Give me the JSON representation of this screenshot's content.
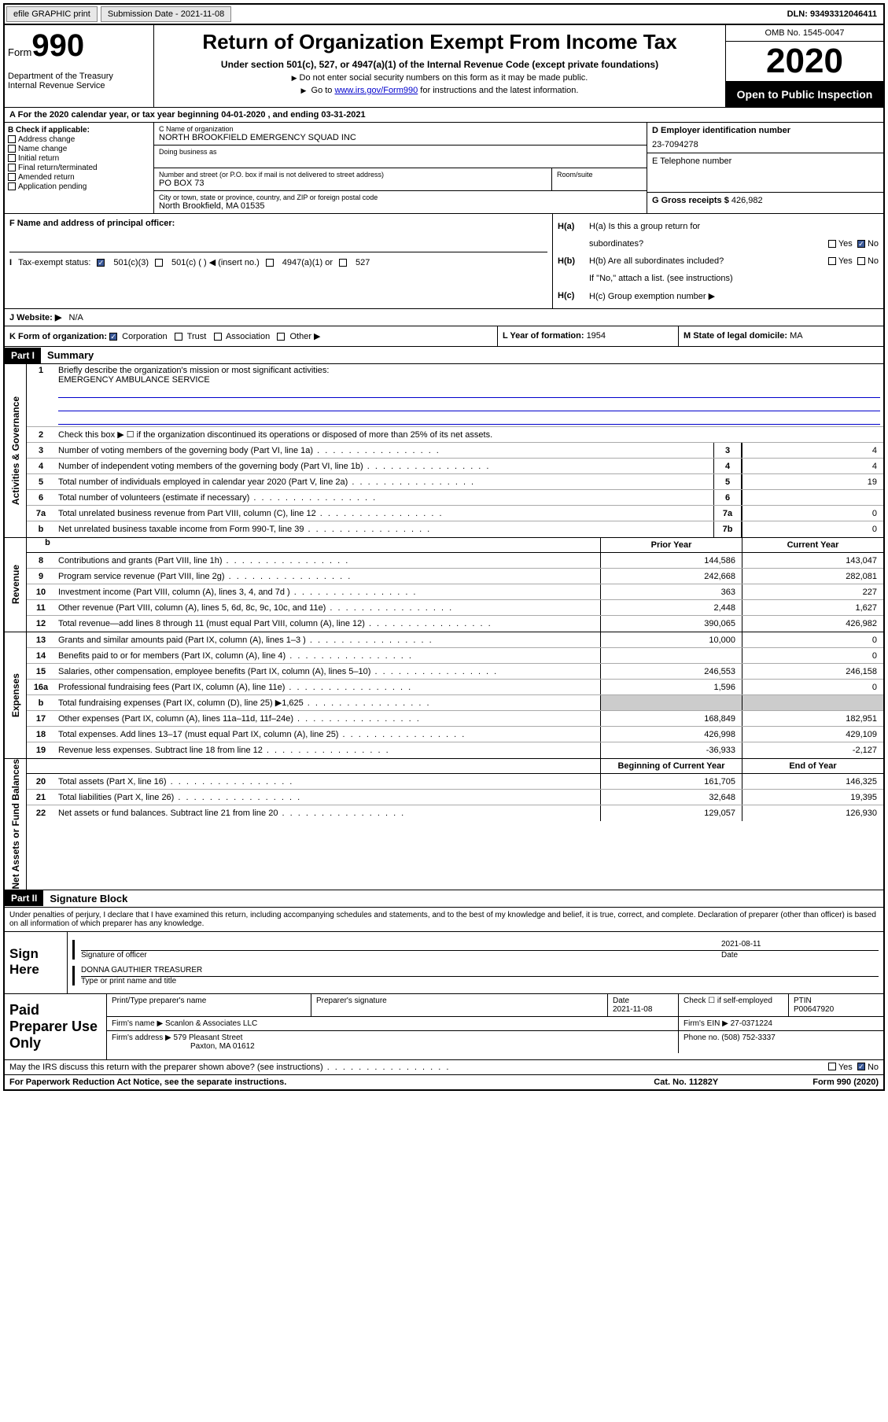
{
  "topbar": {
    "efile": "efile GRAPHIC print",
    "subdate_label": "Submission Date - ",
    "subdate": "2021-11-08",
    "dln_label": "DLN: ",
    "dln": "93493312046411"
  },
  "header": {
    "form_prefix": "Form",
    "form_no": "990",
    "dept": "Department of the Treasury\nInternal Revenue Service",
    "title": "Return of Organization Exempt From Income Tax",
    "subtitle": "Under section 501(c), 527, or 4947(a)(1) of the Internal Revenue Code (except private foundations)",
    "note1": "Do not enter social security numbers on this form as it may be made public.",
    "note2_a": "Go to ",
    "note2_link": "www.irs.gov/Form990",
    "note2_b": " for instructions and the latest information.",
    "omb": "OMB No. 1545-0047",
    "year": "2020",
    "inspect": "Open to Public Inspection"
  },
  "row_a": "For the 2020 calendar year, or tax year beginning 04-01-2020    , and ending 03-31-2021",
  "col_b": {
    "header": "B Check if applicable:",
    "items": [
      "Address change",
      "Name change",
      "Initial return",
      "Final return/terminated",
      "Amended return",
      "Application pending"
    ]
  },
  "col_c": {
    "name_lbl": "C Name of organization",
    "name": "NORTH BROOKFIELD EMERGENCY SQUAD INC",
    "dba_lbl": "Doing business as",
    "street_lbl": "Number and street (or P.O. box if mail is not delivered to street address)",
    "street": "PO BOX 73",
    "room_lbl": "Room/suite",
    "city_lbl": "City or town, state or province, country, and ZIP or foreign postal code",
    "city": "North Brookfield, MA  01535"
  },
  "col_d": {
    "ein_lbl": "D Employer identification number",
    "ein": "23-7094278",
    "tel_lbl": "E Telephone number",
    "gross_lbl": "G Gross receipts $ ",
    "gross": "426,982"
  },
  "row_f": {
    "lbl": "F  Name and address of principal officer:"
  },
  "row_h": {
    "ha": "H(a)  Is this a group return for",
    "ha2": "subordinates?",
    "hb": "H(b)  Are all subordinates included?",
    "hb_note": "If \"No,\" attach a list. (see instructions)",
    "hc": "H(c)  Group exemption number ▶",
    "yes": "Yes",
    "no": "No"
  },
  "row_i": {
    "lbl": "Tax-exempt status:",
    "o1": "501(c)(3)",
    "o2": "501(c) (  ) ◀ (insert no.)",
    "o3": "4947(a)(1) or",
    "o4": "527"
  },
  "row_j": {
    "lbl": "J    Website: ▶",
    "val": "N/A"
  },
  "row_k": {
    "k_lbl": "K Form of organization:",
    "k_opts": [
      "Corporation",
      "Trust",
      "Association",
      "Other ▶"
    ],
    "l_lbl": "L Year of formation: ",
    "l_val": "1954",
    "m_lbl": "M State of legal domicile: ",
    "m_val": "MA"
  },
  "part1": {
    "hdr": "Part I",
    "title": "Summary"
  },
  "governance": {
    "tab": "Activities & Governance",
    "l1_lbl": "Briefly describe the organization's mission or most significant activities:",
    "l1_val": "EMERGENCY AMBULANCE SERVICE",
    "l2": "Check this box ▶ ☐  if the organization discontinued its operations or disposed of more than 25% of its net assets.",
    "lines": [
      {
        "n": "3",
        "desc": "Number of voting members of the governing body (Part VI, line 1a)",
        "box": "3",
        "val": "4"
      },
      {
        "n": "4",
        "desc": "Number of independent voting members of the governing body (Part VI, line 1b)",
        "box": "4",
        "val": "4"
      },
      {
        "n": "5",
        "desc": "Total number of individuals employed in calendar year 2020 (Part V, line 2a)",
        "box": "5",
        "val": "19"
      },
      {
        "n": "6",
        "desc": "Total number of volunteers (estimate if necessary)",
        "box": "6",
        "val": ""
      },
      {
        "n": "7a",
        "desc": "Total unrelated business revenue from Part VIII, column (C), line 12",
        "box": "7a",
        "val": "0"
      },
      {
        "n": "b",
        "desc": "Net unrelated business taxable income from Form 990-T, line 39",
        "box": "7b",
        "val": "0"
      }
    ]
  },
  "twocol_hdr": {
    "prior": "Prior Year",
    "current": "Current Year"
  },
  "revenue": {
    "tab": "Revenue",
    "lines": [
      {
        "n": "8",
        "desc": "Contributions and grants (Part VIII, line 1h)",
        "p": "144,586",
        "c": "143,047"
      },
      {
        "n": "9",
        "desc": "Program service revenue (Part VIII, line 2g)",
        "p": "242,668",
        "c": "282,081"
      },
      {
        "n": "10",
        "desc": "Investment income (Part VIII, column (A), lines 3, 4, and 7d )",
        "p": "363",
        "c": "227"
      },
      {
        "n": "11",
        "desc": "Other revenue (Part VIII, column (A), lines 5, 6d, 8c, 9c, 10c, and 11e)",
        "p": "2,448",
        "c": "1,627"
      },
      {
        "n": "12",
        "desc": "Total revenue—add lines 8 through 11 (must equal Part VIII, column (A), line 12)",
        "p": "390,065",
        "c": "426,982"
      }
    ]
  },
  "expenses": {
    "tab": "Expenses",
    "lines": [
      {
        "n": "13",
        "desc": "Grants and similar amounts paid (Part IX, column (A), lines 1–3 )",
        "p": "10,000",
        "c": "0"
      },
      {
        "n": "14",
        "desc": "Benefits paid to or for members (Part IX, column (A), line 4)",
        "p": "",
        "c": "0"
      },
      {
        "n": "15",
        "desc": "Salaries, other compensation, employee benefits (Part IX, column (A), lines 5–10)",
        "p": "246,553",
        "c": "246,158"
      },
      {
        "n": "16a",
        "desc": "Professional fundraising fees (Part IX, column (A), line 11e)",
        "p": "1,596",
        "c": "0"
      },
      {
        "n": "b",
        "desc": "Total fundraising expenses (Part IX, column (D), line 25) ▶1,625",
        "p": "",
        "c": "",
        "grey": true
      },
      {
        "n": "17",
        "desc": "Other expenses (Part IX, column (A), lines 11a–11d, 11f–24e)",
        "p": "168,849",
        "c": "182,951"
      },
      {
        "n": "18",
        "desc": "Total expenses. Add lines 13–17 (must equal Part IX, column (A), line 25)",
        "p": "426,998",
        "c": "429,109"
      },
      {
        "n": "19",
        "desc": "Revenue less expenses. Subtract line 18 from line 12",
        "p": "-36,933",
        "c": "-2,127"
      }
    ]
  },
  "netassets_hdr": {
    "begin": "Beginning of Current Year",
    "end": "End of Year"
  },
  "netassets": {
    "tab": "Net Assets or Fund Balances",
    "lines": [
      {
        "n": "20",
        "desc": "Total assets (Part X, line 16)",
        "p": "161,705",
        "c": "146,325"
      },
      {
        "n": "21",
        "desc": "Total liabilities (Part X, line 26)",
        "p": "32,648",
        "c": "19,395"
      },
      {
        "n": "22",
        "desc": "Net assets or fund balances. Subtract line 21 from line 20",
        "p": "129,057",
        "c": "126,930"
      }
    ]
  },
  "part2": {
    "hdr": "Part II",
    "title": "Signature Block",
    "decl": "Under penalties of perjury, I declare that I have examined this return, including accompanying schedules and statements, and to the best of my knowledge and belief, it is true, correct, and complete. Declaration of preparer (other than officer) is based on all information of which preparer has any knowledge."
  },
  "sign": {
    "here": "Sign Here",
    "sig_lbl": "Signature of officer",
    "date": "2021-08-11",
    "date_lbl": "Date",
    "name": "DONNA GAUTHIER  TREASURER",
    "name_lbl": "Type or print name and title"
  },
  "prep": {
    "lbl": "Paid Preparer Use Only",
    "h": [
      "Print/Type preparer's name",
      "Preparer's signature",
      "Date",
      "",
      "PTIN"
    ],
    "date": "2021-11-08",
    "check_lbl": "Check ☐ if self-employed",
    "ptin": "P00647920",
    "firm_name_lbl": "Firm's name   ▶",
    "firm_name": "Scanlon & Associates LLC",
    "firm_ein_lbl": "Firm's EIN ▶",
    "firm_ein": "27-0371224",
    "firm_addr_lbl": "Firm's address ▶",
    "firm_addr1": "579 Pleasant Street",
    "firm_addr2": "Paxton, MA  01612",
    "phone_lbl": "Phone no. ",
    "phone": "(508) 752-3337"
  },
  "footer_q": "May the IRS discuss this return with the preparer shown above? (see instructions)",
  "footer": {
    "l": "For Paperwork Reduction Act Notice, see the separate instructions.",
    "m": "Cat. No. 11282Y",
    "r": "Form 990 (2020)"
  }
}
